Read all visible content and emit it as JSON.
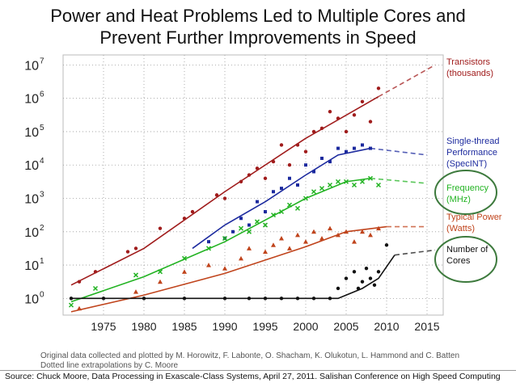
{
  "header": {
    "title_line1": "Power and Heat Problems Led to Multiple Cores and",
    "title_line2": "Prevent Further Improvements in Speed"
  },
  "footer": {
    "credit_line1": "Original data collected and plotted by M. Horowitz, F. Labonte, O. Shacham, K. Olukotun, L. Hammond and C. Batten",
    "credit_line2": "Dotted line extrapolations by C. Moore",
    "source": "Source: Chuck Moore, Data Processing in Exascale-Class Systems, April 27, 2011. Salishan Conference on High Speed Computing"
  },
  "chart_data": {
    "type": "scatter",
    "title": "",
    "xlabel": "",
    "ylabel": "",
    "xlim": [
      1970,
      2017
    ],
    "ylim_exponent": [
      -0.5,
      7.3
    ],
    "yscale": "log",
    "grid": "dotted",
    "x_ticks": [
      "1975",
      "1980",
      "1985",
      "1990",
      "1995",
      "2000",
      "2005",
      "2010",
      "2015"
    ],
    "y_tick_exponents": [
      0,
      1,
      2,
      3,
      4,
      5,
      6,
      7
    ],
    "y_tick_base": "10",
    "series": [
      {
        "name": "Transistors (thousands)",
        "legend_lines": [
          "Transistors",
          "(thousands)"
        ],
        "color": "#a01c1c",
        "marker": "dot",
        "trend_x": [
          1971,
          1980,
          1990,
          2000,
          2009
        ],
        "trend_y": [
          0.4,
          1.5,
          3.2,
          4.8,
          6.05
        ],
        "extrap_x": [
          2009,
          2016
        ],
        "extrap_y": [
          6.05,
          7.0
        ],
        "x": [
          1972,
          1974,
          1978,
          1979,
          1982,
          1985,
          1986,
          1989,
          1990,
          1992,
          1993,
          1994,
          1995,
          1996,
          1997,
          1998,
          1999,
          2000,
          2001,
          2002,
          2003,
          2004,
          2005,
          2006,
          2007,
          2008,
          2009
        ],
        "y": [
          0.5,
          0.8,
          1.4,
          1.5,
          2.1,
          2.4,
          2.6,
          3.1,
          3.0,
          3.5,
          3.7,
          3.9,
          3.6,
          4.1,
          4.6,
          4.0,
          4.6,
          4.4,
          5.0,
          5.1,
          5.6,
          5.4,
          5.0,
          5.5,
          5.9,
          5.3,
          6.3
        ]
      },
      {
        "name": "Single-thread Performance (SpecINT)",
        "legend_lines": [
          "Single-thread",
          "Performance",
          "(SpecINT)"
        ],
        "color": "#1c2a9e",
        "marker": "square",
        "trend_x": [
          1986,
          1990,
          1995,
          2000,
          2004,
          2008
        ],
        "trend_y": [
          1.5,
          2.2,
          2.9,
          3.7,
          4.3,
          4.5
        ],
        "extrap_x": [
          2008,
          2015
        ],
        "extrap_y": [
          4.5,
          4.3
        ],
        "x": [
          1988,
          1990,
          1991,
          1992,
          1993,
          1994,
          1995,
          1996,
          1997,
          1998,
          1999,
          2000,
          2001,
          2002,
          2003,
          2004,
          2005,
          2006,
          2007,
          2008
        ],
        "y": [
          1.7,
          1.8,
          2.0,
          2.4,
          2.2,
          2.9,
          2.6,
          3.2,
          3.3,
          3.6,
          3.4,
          4.0,
          3.8,
          4.2,
          4.1,
          4.5,
          4.4,
          4.5,
          4.6,
          4.5
        ]
      },
      {
        "name": "Frequency (MHz)",
        "legend_lines": [
          "Frequency",
          "(MHz)"
        ],
        "color": "#22b322",
        "marker": "cross",
        "trend_x": [
          1971,
          1980,
          1990,
          2000,
          2005,
          2008
        ],
        "trend_y": [
          -0.1,
          0.65,
          1.7,
          3.0,
          3.5,
          3.6
        ],
        "extrap_x": [
          2008,
          2015
        ],
        "extrap_y": [
          3.6,
          3.45
        ],
        "x": [
          1971,
          1974,
          1979,
          1982,
          1985,
          1988,
          1990,
          1992,
          1993,
          1994,
          1995,
          1996,
          1997,
          1998,
          1999,
          2000,
          2001,
          2002,
          2003,
          2004,
          2005,
          2006,
          2007,
          2008,
          2009
        ],
        "y": [
          -0.2,
          0.3,
          0.7,
          0.8,
          1.2,
          1.5,
          1.8,
          2.1,
          2.0,
          2.3,
          2.2,
          2.5,
          2.6,
          2.8,
          2.7,
          3.0,
          3.2,
          3.3,
          3.4,
          3.5,
          3.5,
          3.4,
          3.5,
          3.6,
          3.4
        ]
      },
      {
        "name": "Typical Power (Watts)",
        "legend_lines": [
          "Typical Power",
          "(Watts)"
        ],
        "color": "#c0441c",
        "marker": "triangle",
        "trend_x": [
          1971,
          1980,
          1990,
          2000,
          2005,
          2010
        ],
        "trend_y": [
          -0.4,
          0.1,
          0.75,
          1.55,
          2.0,
          2.15
        ],
        "extrap_x": [
          2010,
          2015
        ],
        "extrap_y": [
          2.15,
          2.15
        ],
        "x": [
          1972,
          1979,
          1982,
          1985,
          1988,
          1990,
          1992,
          1993,
          1995,
          1996,
          1997,
          1998,
          1999,
          2000,
          2001,
          2002,
          2003,
          2004,
          2005,
          2006,
          2007,
          2008,
          2009
        ],
        "y": [
          -0.3,
          0.2,
          0.5,
          0.8,
          1.0,
          0.9,
          1.2,
          1.5,
          1.4,
          1.6,
          1.8,
          1.5,
          1.9,
          1.7,
          2.0,
          1.8,
          2.1,
          1.9,
          2.0,
          1.7,
          2.0,
          1.9,
          2.1
        ]
      },
      {
        "name": "Number of Cores",
        "legend_lines": [
          "Number of",
          "Cores"
        ],
        "color": "#111111",
        "marker": "dot",
        "trend_x": [
          1971,
          2004,
          2005,
          2007,
          2009,
          2011
        ],
        "trend_y": [
          0.0,
          0.0,
          0.1,
          0.3,
          0.6,
          1.3
        ],
        "extrap_x": [
          2011,
          2016
        ],
        "extrap_y": [
          1.3,
          1.45
        ],
        "x": [
          1971,
          1975,
          1980,
          1985,
          1990,
          1993,
          1995,
          1997,
          1999,
          2001,
          2003,
          2004,
          2005,
          2006,
          2006.5,
          2007,
          2007.5,
          2008,
          2008.5,
          2009,
          2010
        ],
        "y": [
          0.0,
          0.0,
          0.0,
          0.0,
          0.0,
          0.0,
          0.0,
          0.0,
          0.0,
          0.0,
          0.0,
          0.3,
          0.6,
          0.8,
          0.3,
          0.5,
          0.9,
          0.6,
          0.4,
          0.8,
          1.6
        ]
      }
    ],
    "highlighted_legend": [
      "Frequency (MHz)",
      "Number of Cores"
    ]
  }
}
